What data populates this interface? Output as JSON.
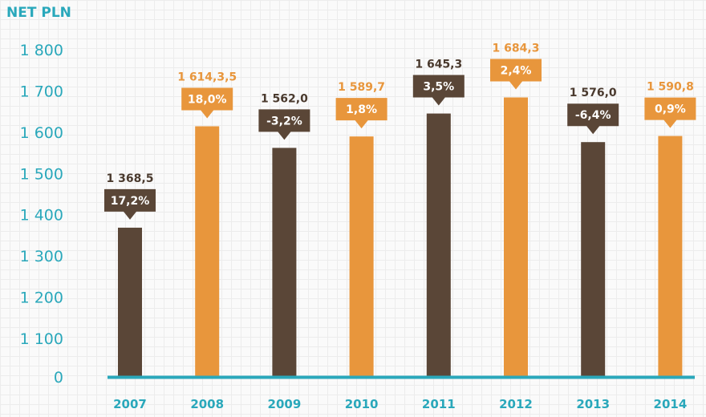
{
  "chart_data": {
    "type": "bar",
    "ylabel": "NET PLN",
    "categories": [
      "2007",
      "2008",
      "2009",
      "2010",
      "2011",
      "2012",
      "2013",
      "2014"
    ],
    "values": [
      1368.5,
      1614.35,
      1562.0,
      1589.7,
      1645.3,
      1684.3,
      1576.0,
      1590.8
    ],
    "value_labels": [
      "1 368,5",
      "1 614,3,5",
      "1 562,0",
      "1 589,7",
      "1 645,3",
      "1 684,3",
      "1 576,0",
      "1 590,8"
    ],
    "change_labels": [
      "17,2%",
      "18,0%",
      "-3,2%",
      "1,8%",
      "3,5%",
      "2,4%",
      "-6,4%",
      "0,9%"
    ],
    "yticks": [
      0,
      1100,
      1200,
      1300,
      1400,
      1500,
      1600,
      1700,
      1800
    ],
    "ytick_labels": [
      "0",
      "1 100",
      "1 200",
      "1 300",
      "1 400",
      "1 500",
      "1 600",
      "1 700",
      "1 800"
    ],
    "ylim": [
      1050,
      1850
    ],
    "axis_break": true,
    "grid": false,
    "colors": {
      "dark": "#5a4637",
      "orange": "#e8963c",
      "axis": "#2aa8bb",
      "text_dark": "#4a3a2e"
    }
  }
}
